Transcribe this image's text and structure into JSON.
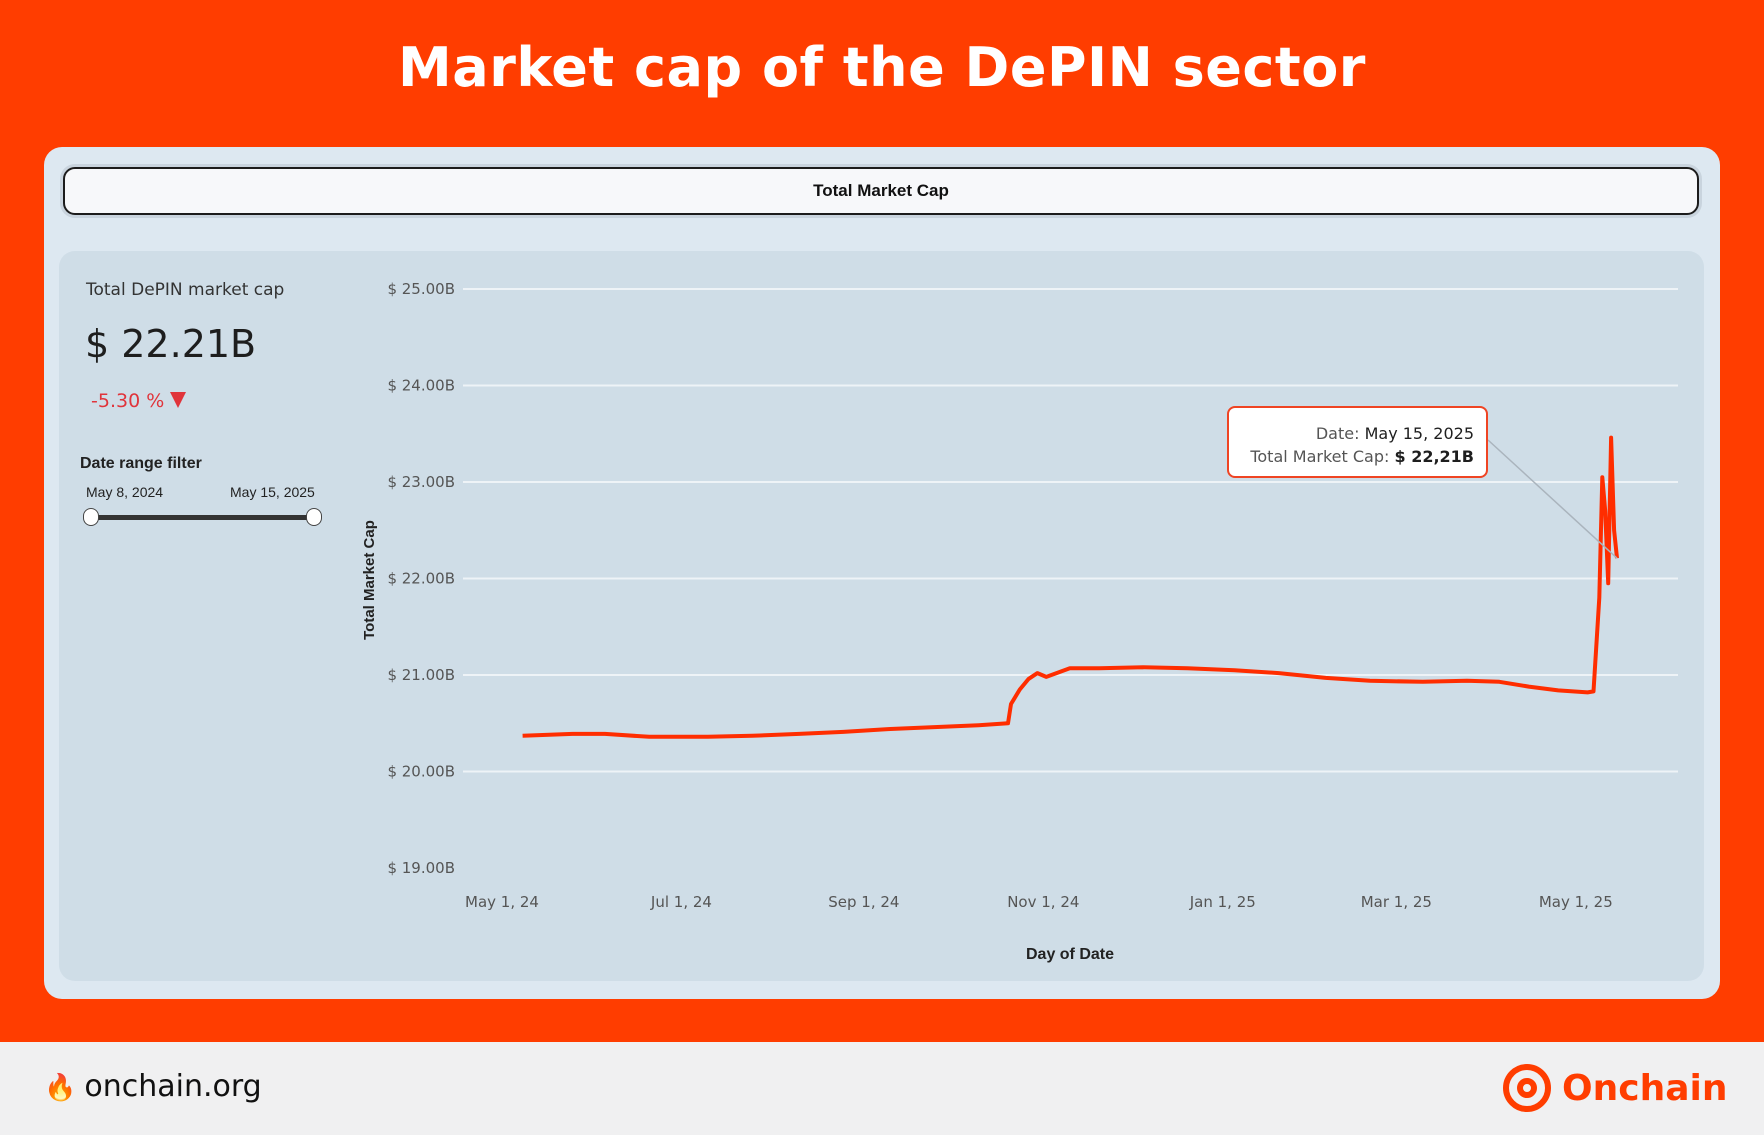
{
  "header": {
    "title": "Market cap of the DePIN sector"
  },
  "tab": {
    "label": "Total Market Cap"
  },
  "kpi": {
    "label": "Total DePIN market cap",
    "value": "$ 22.21B",
    "change": "-5.30 %"
  },
  "filter": {
    "title": "Date range filter",
    "start_label": "May 8, 2024",
    "end_label": "May 15, 2025"
  },
  "tooltip": {
    "date_label": "Date:",
    "date_value": "May 15, 2025",
    "cap_label": "Total Market Cap:",
    "cap_value": "$ 22,21B"
  },
  "footer": {
    "site": "onchain.org",
    "brand": "Onchain"
  },
  "colors": {
    "line": "#ff2d00",
    "accent": "#ff3d00",
    "negative": "#e0343b"
  },
  "chart_data": {
    "type": "line",
    "title": "",
    "xlabel": "Day of Date",
    "ylabel": "Total Market Cap",
    "y_ticks": [
      {
        "v": 25,
        "label": "$ 25.00B"
      },
      {
        "v": 24,
        "label": "$ 24.00B"
      },
      {
        "v": 23,
        "label": "$ 23.00B"
      },
      {
        "v": 22,
        "label": "$ 22.00B"
      },
      {
        "v": 21,
        "label": "$ 21.00B"
      },
      {
        "v": 20,
        "label": "$ 20.00B"
      },
      {
        "v": 19,
        "label": "$ 19.00B"
      }
    ],
    "x_ticks": [
      {
        "d": "2024-05-01",
        "label": "May 1, 24"
      },
      {
        "d": "2024-07-01",
        "label": "Jul 1, 24"
      },
      {
        "d": "2024-09-01",
        "label": "Sep 1, 24"
      },
      {
        "d": "2024-11-01",
        "label": "Nov 1, 24"
      },
      {
        "d": "2025-01-01",
        "label": "Jan 1, 25"
      },
      {
        "d": "2025-03-01",
        "label": "Mar 1, 25"
      },
      {
        "d": "2025-05-01",
        "label": "May 1, 25"
      }
    ],
    "ylim": [
      19,
      25
    ],
    "xlim": [
      "2024-05-01",
      "2025-05-15"
    ],
    "grid": true,
    "series": [
      {
        "x": [
          "2024-05-08",
          "2024-05-25",
          "2024-06-05",
          "2024-06-20",
          "2024-07-10",
          "2024-07-25",
          "2024-08-10",
          "2024-08-25",
          "2024-09-10",
          "2024-09-25",
          "2024-10-10",
          "2024-10-20",
          "2024-10-21",
          "2024-10-24",
          "2024-10-27",
          "2024-10-30",
          "2024-11-02",
          "2024-11-10",
          "2024-11-20",
          "2024-12-05",
          "2024-12-20",
          "2025-01-05",
          "2025-01-20",
          "2025-02-05",
          "2025-02-20",
          "2025-03-10",
          "2025-03-25",
          "2025-04-05",
          "2025-04-15",
          "2025-04-25",
          "2025-05-05",
          "2025-05-07",
          "2025-05-09",
          "2025-05-10",
          "2025-05-11",
          "2025-05-12",
          "2025-05-13",
          "2025-05-14",
          "2025-05-15"
        ],
        "y": [
          20.37,
          20.39,
          20.39,
          20.36,
          20.36,
          20.37,
          20.39,
          20.41,
          20.44,
          20.46,
          20.48,
          20.5,
          20.7,
          20.85,
          20.96,
          21.02,
          20.98,
          21.07,
          21.07,
          21.08,
          21.07,
          21.05,
          21.02,
          20.97,
          20.94,
          20.93,
          20.94,
          20.93,
          20.88,
          20.84,
          20.82,
          20.83,
          21.8,
          23.05,
          22.7,
          21.95,
          23.46,
          22.5,
          22.21
        ]
      }
    ]
  }
}
